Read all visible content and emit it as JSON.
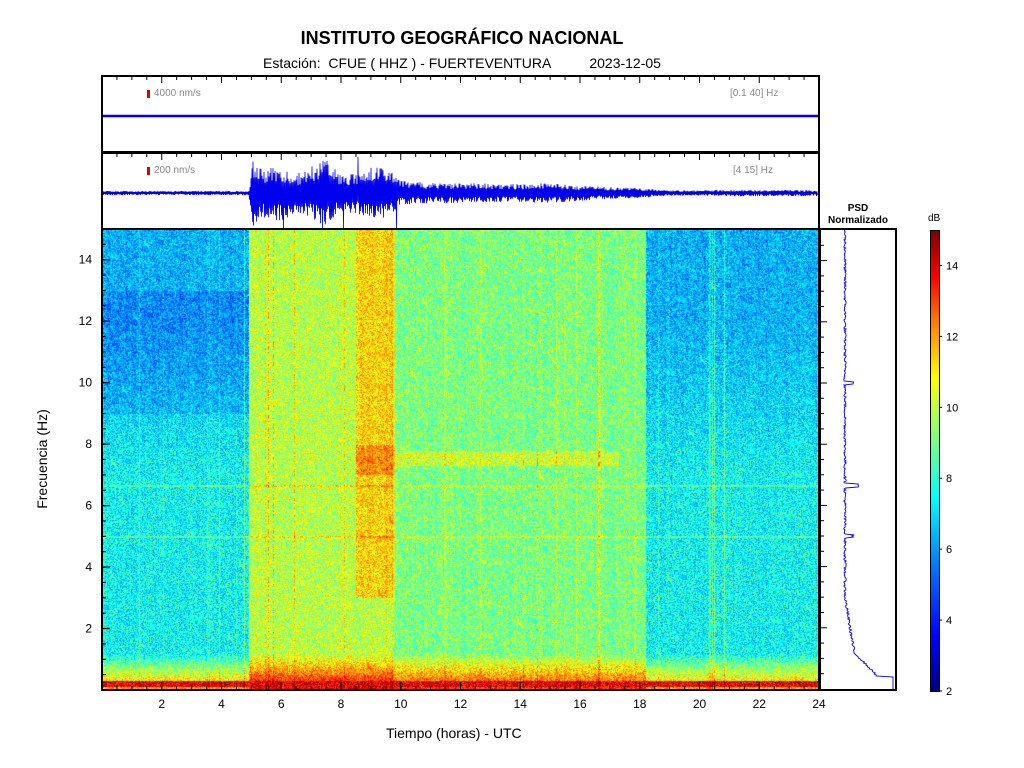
{
  "header": {
    "title": "INSTITUTO GEOGRÁFICO NACIONAL",
    "station_line": "Estación:  CFUE ( HHZ ) - FUERTEVENTURA",
    "date": "2023-12-05"
  },
  "colors": {
    "trace": "#0000ee",
    "scale_marker": "#e00000",
    "colormap": [
      "#00007f",
      "#0000ff",
      "#007fff",
      "#00ffff",
      "#7fff7f",
      "#ffff00",
      "#ff7f00",
      "#ff0000",
      "#7f0000"
    ]
  },
  "chart_data": [
    {
      "type": "line",
      "panel": "waveform-broadband",
      "scale_label": "4000 nm/s",
      "band_label": "[0.1 40] Hz",
      "x_range": [
        0,
        24
      ],
      "description_level": "flat trace, no visible events"
    },
    {
      "type": "line",
      "panel": "waveform-filtered",
      "scale_label": "200 nm/s",
      "band_label": "[4 15] Hz",
      "x_range": [
        0,
        24
      ],
      "amplitude_envelope": {
        "hours": [
          0,
          4.9,
          5.0,
          5.5,
          6.0,
          6.5,
          7.0,
          7.5,
          8.0,
          8.5,
          9.0,
          9.5,
          10.0,
          11.0,
          12.0,
          13.0,
          14.0,
          15.0,
          16.0,
          17.0,
          18.0,
          19.0,
          20.0,
          21.0,
          22.0,
          23.0,
          24.0
        ],
        "relative_amplitude": [
          0.06,
          0.06,
          1.0,
          0.7,
          0.85,
          0.55,
          0.8,
          1.0,
          0.55,
          0.6,
          0.75,
          0.8,
          0.35,
          0.3,
          0.3,
          0.28,
          0.26,
          0.3,
          0.24,
          0.18,
          0.15,
          0.08,
          0.08,
          0.1,
          0.09,
          0.09,
          0.09
        ]
      }
    },
    {
      "type": "heatmap",
      "panel": "spectrogram",
      "xlabel": "Tiempo (horas) - UTC",
      "ylabel": "Frecuencia  (Hz)",
      "x_ticks": [
        "2",
        "4",
        "6",
        "8",
        "10",
        "12",
        "14",
        "16",
        "18",
        "20",
        "22",
        "24"
      ],
      "y_ticks": [
        "2",
        "4",
        "6",
        "8",
        "10",
        "12",
        "14"
      ],
      "xlim": [
        0,
        24
      ],
      "ylim": [
        0,
        15
      ],
      "noise_regions": [
        {
          "hours": [
            0,
            4.9
          ],
          "level": "low"
        },
        {
          "hours": [
            4.9,
            9.7
          ],
          "level": "high"
        },
        {
          "hours": [
            9.7,
            18.2
          ],
          "level": "medium"
        },
        {
          "hours": [
            18.2,
            24
          ],
          "level": "low"
        }
      ],
      "features": [
        {
          "label": "horizontal tonal line",
          "freq_hz": 6.65
        },
        {
          "label": "horizontal tonal line",
          "freq_hz": 5.0
        },
        {
          "label": "strong low-frequency band",
          "freq_hz": 0.2
        },
        {
          "label": "burst band",
          "hours": [
            8.5,
            9.8
          ],
          "freq_range_hz": [
            3.0,
            15.0
          ]
        },
        {
          "label": "intermittent band",
          "hours": [
            9.8,
            17.3
          ],
          "freq_range_hz": [
            7.3,
            7.8
          ]
        }
      ]
    },
    {
      "type": "line",
      "panel": "psd-normalized",
      "title_line1": "PSD",
      "title_line2": "Normalizado",
      "peaks_hz": [
        10.0,
        6.65,
        5.0
      ]
    },
    {
      "type": "colorbar",
      "unit": "dB",
      "ticks": [
        "2",
        "4",
        "6",
        "8",
        "10",
        "12",
        "14"
      ],
      "range": [
        2,
        15
      ]
    }
  ]
}
